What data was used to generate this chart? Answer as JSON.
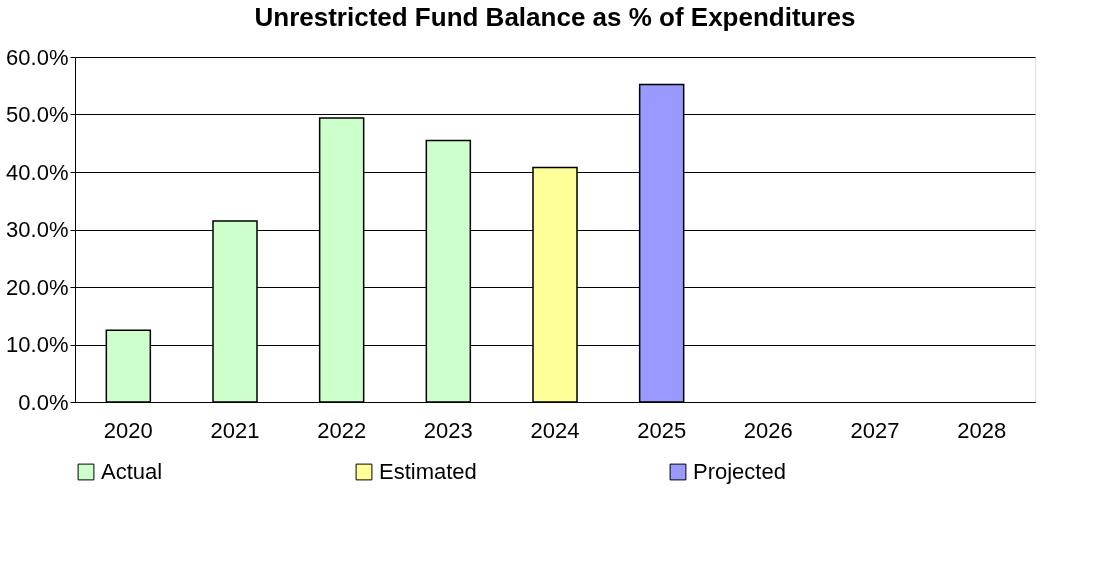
{
  "chart_data": {
    "type": "bar",
    "title": "Unrestricted Fund Balance as % of Expenditures",
    "categories": [
      "2020",
      "2021",
      "2022",
      "2023",
      "2024",
      "2025",
      "2026",
      "2027",
      "2028"
    ],
    "series": [
      {
        "name": "Actual",
        "color": "#ccffcc",
        "values": [
          12.5,
          31.5,
          49.4,
          45.5,
          null,
          null,
          null,
          null,
          null
        ]
      },
      {
        "name": "Estimated",
        "color": "#ffff99",
        "values": [
          null,
          null,
          null,
          null,
          40.8,
          null,
          null,
          null,
          null
        ]
      },
      {
        "name": "Projected",
        "color": "#9999ff",
        "values": [
          null,
          null,
          null,
          null,
          null,
          55.2,
          null,
          null,
          null
        ]
      }
    ],
    "ylim": [
      0,
      60
    ],
    "yticks": [
      {
        "value": 0,
        "label": "0.0%"
      },
      {
        "value": 10,
        "label": "10.0%"
      },
      {
        "value": 20,
        "label": "20.0%"
      },
      {
        "value": 30,
        "label": "30.0%"
      },
      {
        "value": 40,
        "label": "40.0%"
      },
      {
        "value": 50,
        "label": "50.0%"
      },
      {
        "value": 60,
        "label": "60.0%"
      }
    ],
    "grid": "y",
    "legend": "bottom"
  }
}
